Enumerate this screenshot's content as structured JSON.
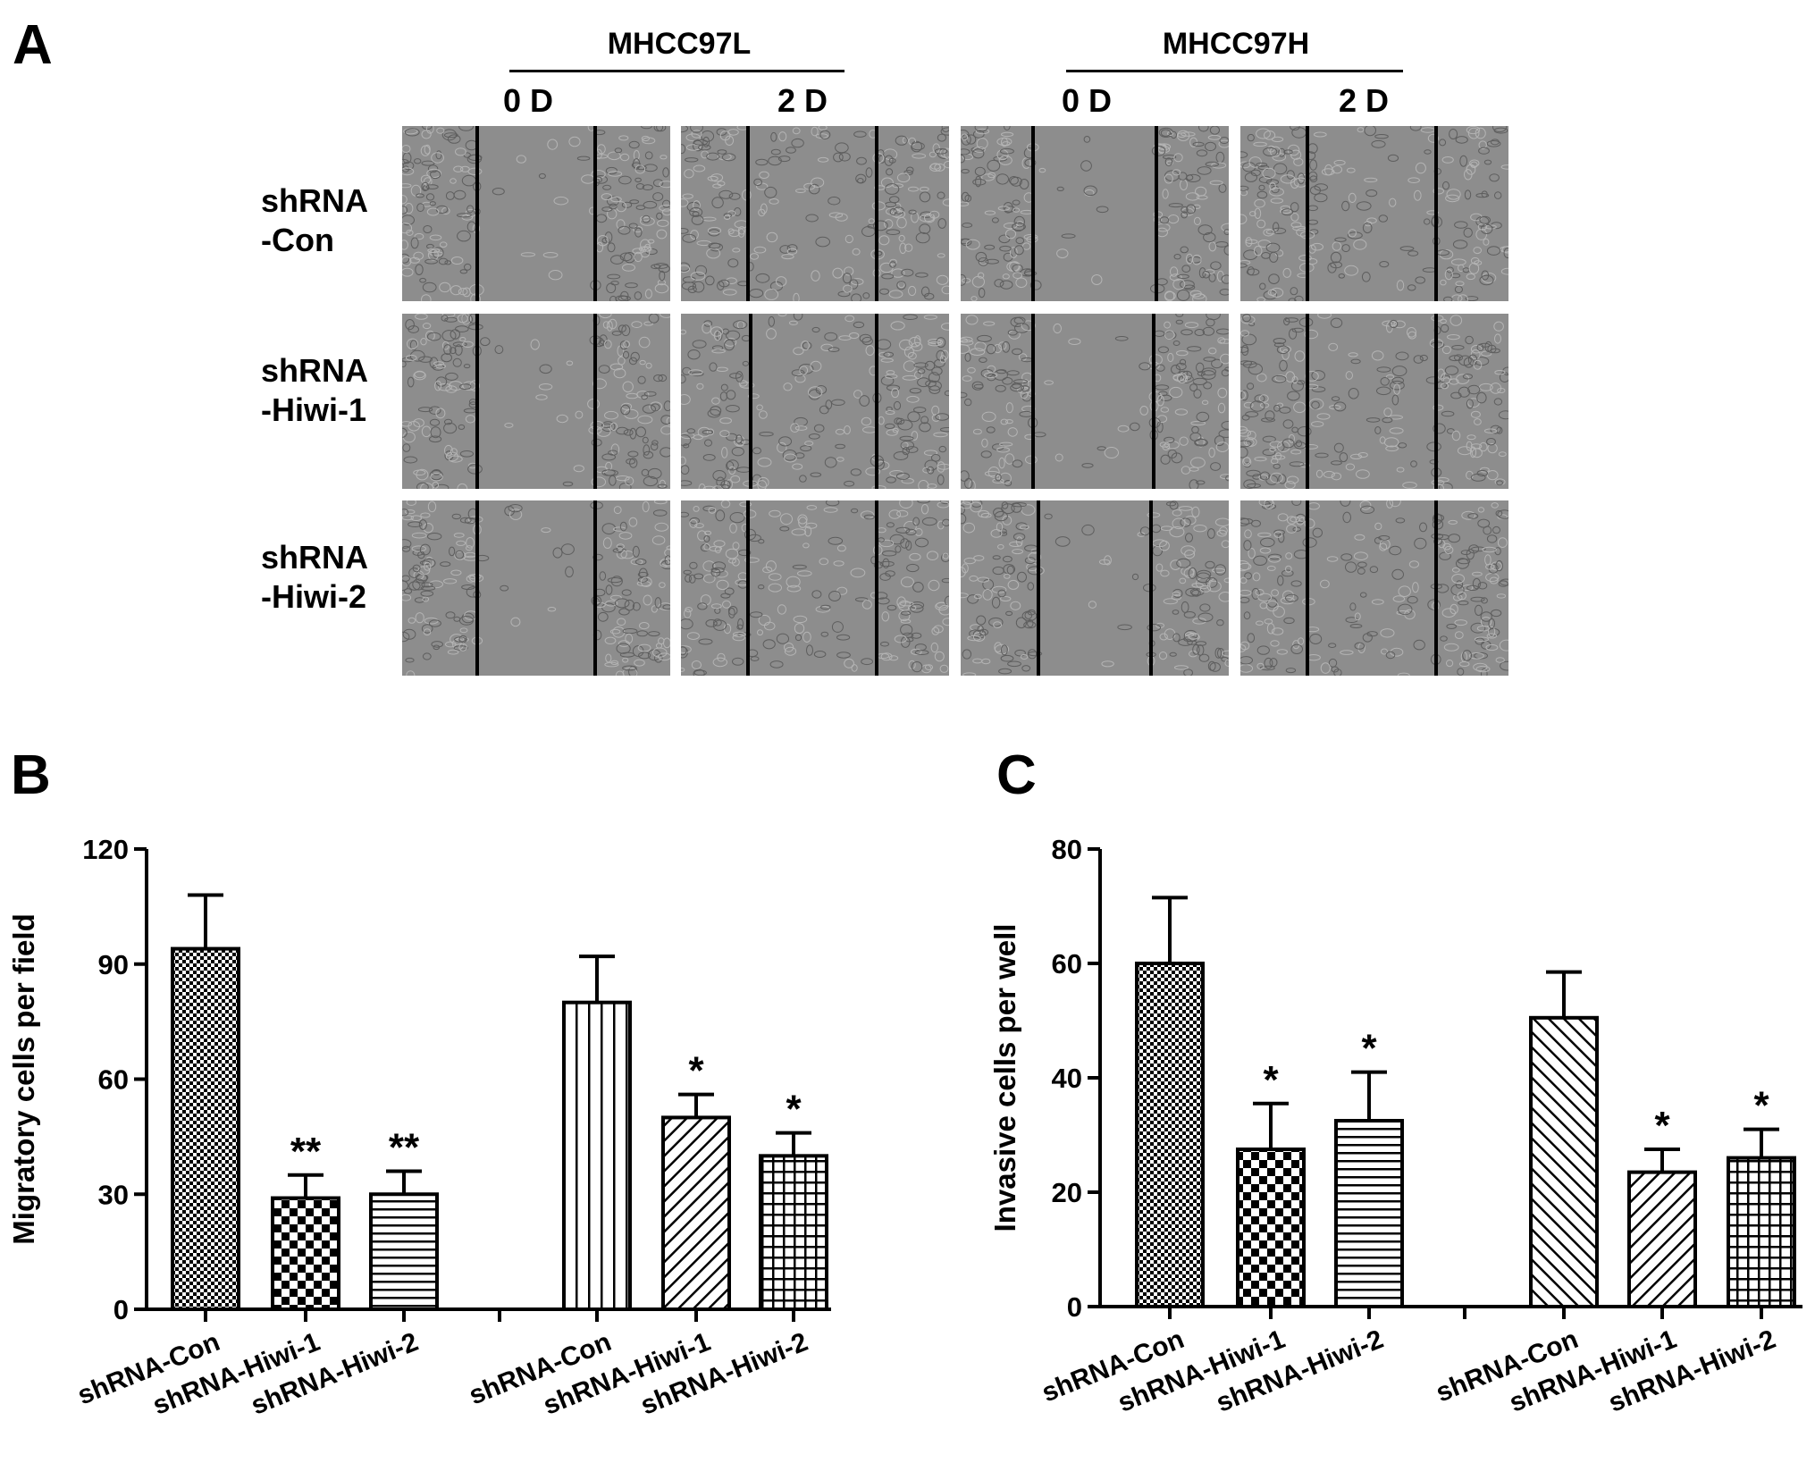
{
  "panel_a": {
    "letter": "A",
    "groups": [
      {
        "name": "MHCC97L",
        "days": [
          "0 D",
          "2 D"
        ]
      },
      {
        "name": "MHCC97H",
        "days": [
          "0 D",
          "2 D"
        ]
      }
    ],
    "rows": [
      {
        "line1": "shRNA",
        "line2": "-Con"
      },
      {
        "line1": "shRNA",
        "line2": "-Hiwi-1"
      },
      {
        "line1": "shRNA",
        "line2": "-Hiwi-2"
      }
    ]
  },
  "chart_data": [
    {
      "panel": "B",
      "type": "bar",
      "ylabel": "Migratory cells per field",
      "ylim": [
        0,
        120
      ],
      "yticks": [
        0,
        30,
        60,
        90,
        120
      ],
      "categories": [
        "shRNA-Con",
        "shRNA-Hiwi-1",
        "shRNA-Hiwi-2",
        "shRNA-Con",
        "shRNA-Hiwi-1",
        "shRNA-Hiwi-2"
      ],
      "values": [
        94,
        29,
        30,
        80,
        50,
        40
      ],
      "errors": [
        14,
        6,
        6,
        12,
        6,
        6
      ],
      "significance": [
        "",
        "**",
        "**",
        "",
        "*",
        "*"
      ],
      "patterns": [
        "dense",
        "checker",
        "hlines",
        "vlines",
        "diag-back",
        "grid"
      ]
    },
    {
      "panel": "C",
      "type": "bar",
      "ylabel": "Invasive cells per well",
      "ylim": [
        0,
        80
      ],
      "yticks": [
        0,
        20,
        40,
        60,
        80
      ],
      "categories": [
        "shRNA-Con",
        "shRNA-Hiwi-1",
        "shRNA-Hiwi-2",
        "shRNA-Con",
        "shRNA-Hiwi-1",
        "shRNA-Hiwi-2"
      ],
      "values": [
        60,
        27.5,
        32.5,
        50.5,
        23.5,
        26
      ],
      "errors": [
        11.5,
        8,
        8.5,
        8,
        4,
        5
      ],
      "significance": [
        "",
        "*",
        "*",
        "",
        "*",
        "*"
      ],
      "patterns": [
        "dense",
        "checker",
        "hlines",
        "diag-fwd",
        "diag-back",
        "grid"
      ]
    }
  ]
}
